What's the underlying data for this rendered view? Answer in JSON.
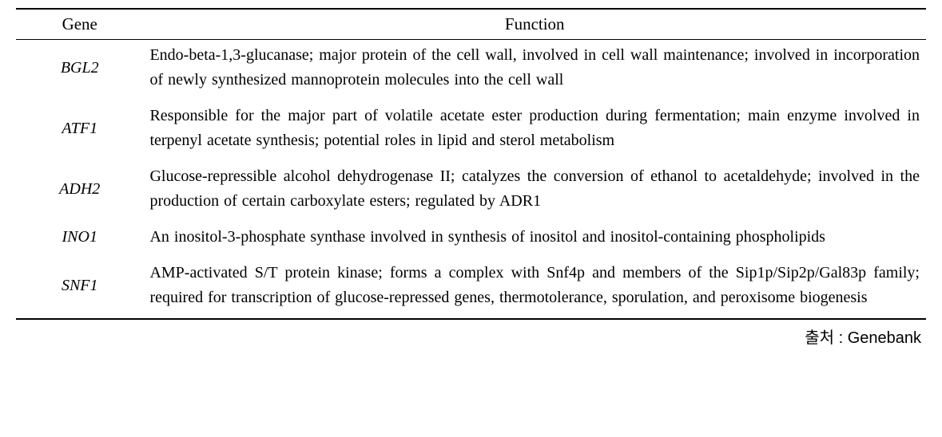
{
  "table": {
    "columns": {
      "gene": "Gene",
      "function": "Function"
    },
    "rows": [
      {
        "gene": "BGL2",
        "function": "Endo-beta-1,3-glucanase; major protein of the cell wall, involved in cell wall maintenance; involved in incorporation of newly synthesized mannoprotein molecules into the cell wall"
      },
      {
        "gene": "ATF1",
        "function": "Responsible for the major part of volatile acetate ester production during fermentation; main enzyme involved in terpenyl acetate synthesis; potential roles in lipid and sterol metabolism"
      },
      {
        "gene": "ADH2",
        "function": "Glucose-repressible alcohol dehydrogenase II; catalyzes the conversion of ethanol to acetaldehyde; involved in the production of certain carboxylate esters; regulated by ADR1"
      },
      {
        "gene": "INO1",
        "function": "An inositol-3-phosphate synthase involved in synthesis of inositol and inositol-containing phospholipids"
      },
      {
        "gene": "SNF1",
        "function": "AMP-activated S/T protein kinase; forms a complex with Snf4p and members of the Sip1p/Sip2p/Gal83p family; required for transcription of glucose-repressed genes, thermotolerance, sporulation, and peroxisome biogenesis"
      }
    ]
  },
  "source": {
    "label": "출처 : Genebank"
  },
  "styles": {
    "font_family": "Times New Roman",
    "header_fontsize": 21,
    "body_fontsize": 20,
    "source_fontsize": 20,
    "border_top_width": 2,
    "border_header_bottom_width": 1,
    "border_bottom_width": 2,
    "border_color": "#000000",
    "text_color": "#000000",
    "background_color": "#ffffff",
    "gene_italic": true,
    "function_align": "justify",
    "line_height": 1.55,
    "col_widths": {
      "gene": "14%",
      "function": "86%"
    }
  }
}
